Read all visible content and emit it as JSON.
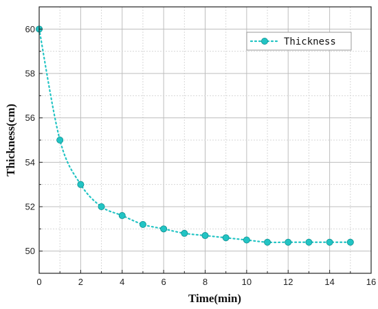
{
  "chart_data": {
    "type": "line",
    "title": "",
    "xlabel": "Time(min)",
    "ylabel": "Thickness(cm)",
    "xlim": [
      0,
      16
    ],
    "ylim": [
      49,
      61
    ],
    "xticks": [
      0,
      2,
      4,
      6,
      8,
      10,
      12,
      14,
      16
    ],
    "yticks": [
      50,
      52,
      54,
      56,
      58,
      60
    ],
    "grid": true,
    "legend_position": "top-right",
    "series": [
      {
        "name": "Thickness",
        "color": "#22c4c4",
        "line_style": "dotted",
        "marker": "circle",
        "x": [
          0,
          1,
          2,
          3,
          4,
          5,
          6,
          7,
          8,
          9,
          10,
          11,
          12,
          13,
          14,
          15
        ],
        "y": [
          60,
          55,
          53,
          52,
          51.6,
          51.2,
          51,
          50.8,
          50.7,
          50.6,
          50.5,
          50.4,
          50.4,
          50.4,
          50.4,
          50.4
        ]
      }
    ]
  }
}
